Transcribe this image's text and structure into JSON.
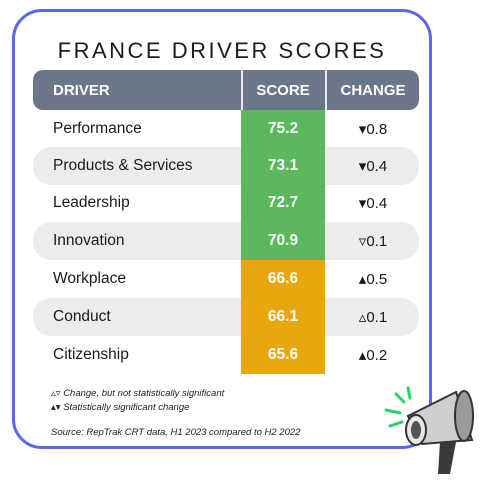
{
  "title": "FRANCE DRIVER SCORES",
  "headers": {
    "driver": "DRIVER",
    "score": "SCORE",
    "change": "CHANGE"
  },
  "colors": {
    "frame": "#5b67e6",
    "header": "#6b7789",
    "green": "#5cb85c",
    "amber": "#e9a70f",
    "stripe": "#ececec"
  },
  "rows": [
    {
      "driver": "Performance",
      "score": "75.2",
      "change": "▾0.8",
      "level": "green"
    },
    {
      "driver": "Products & Services",
      "score": "73.1",
      "change": "▾0.4",
      "level": "green"
    },
    {
      "driver": "Leadership",
      "score": "72.7",
      "change": "▾0.4",
      "level": "green"
    },
    {
      "driver": "Innovation",
      "score": "70.9",
      "change": "▿0.1",
      "level": "green"
    },
    {
      "driver": "Workplace",
      "score": "66.6",
      "change": "▴0.5",
      "level": "amber"
    },
    {
      "driver": "Conduct",
      "score": "66.1",
      "change": "▵0.1",
      "level": "amber"
    },
    {
      "driver": "Citizenship",
      "score": "65.6",
      "change": "▴0.2",
      "level": "amber"
    }
  ],
  "legend": {
    "not_significant_symbols": "▵▿",
    "not_significant": "Change, but not statistically significant",
    "significant_symbols": "▴▾",
    "significant": "Statistically significant change"
  },
  "source": "Source: RepTrak CRT data, H1 2023 compared to H2 2022",
  "icons": {
    "megaphone": "megaphone-icon"
  }
}
